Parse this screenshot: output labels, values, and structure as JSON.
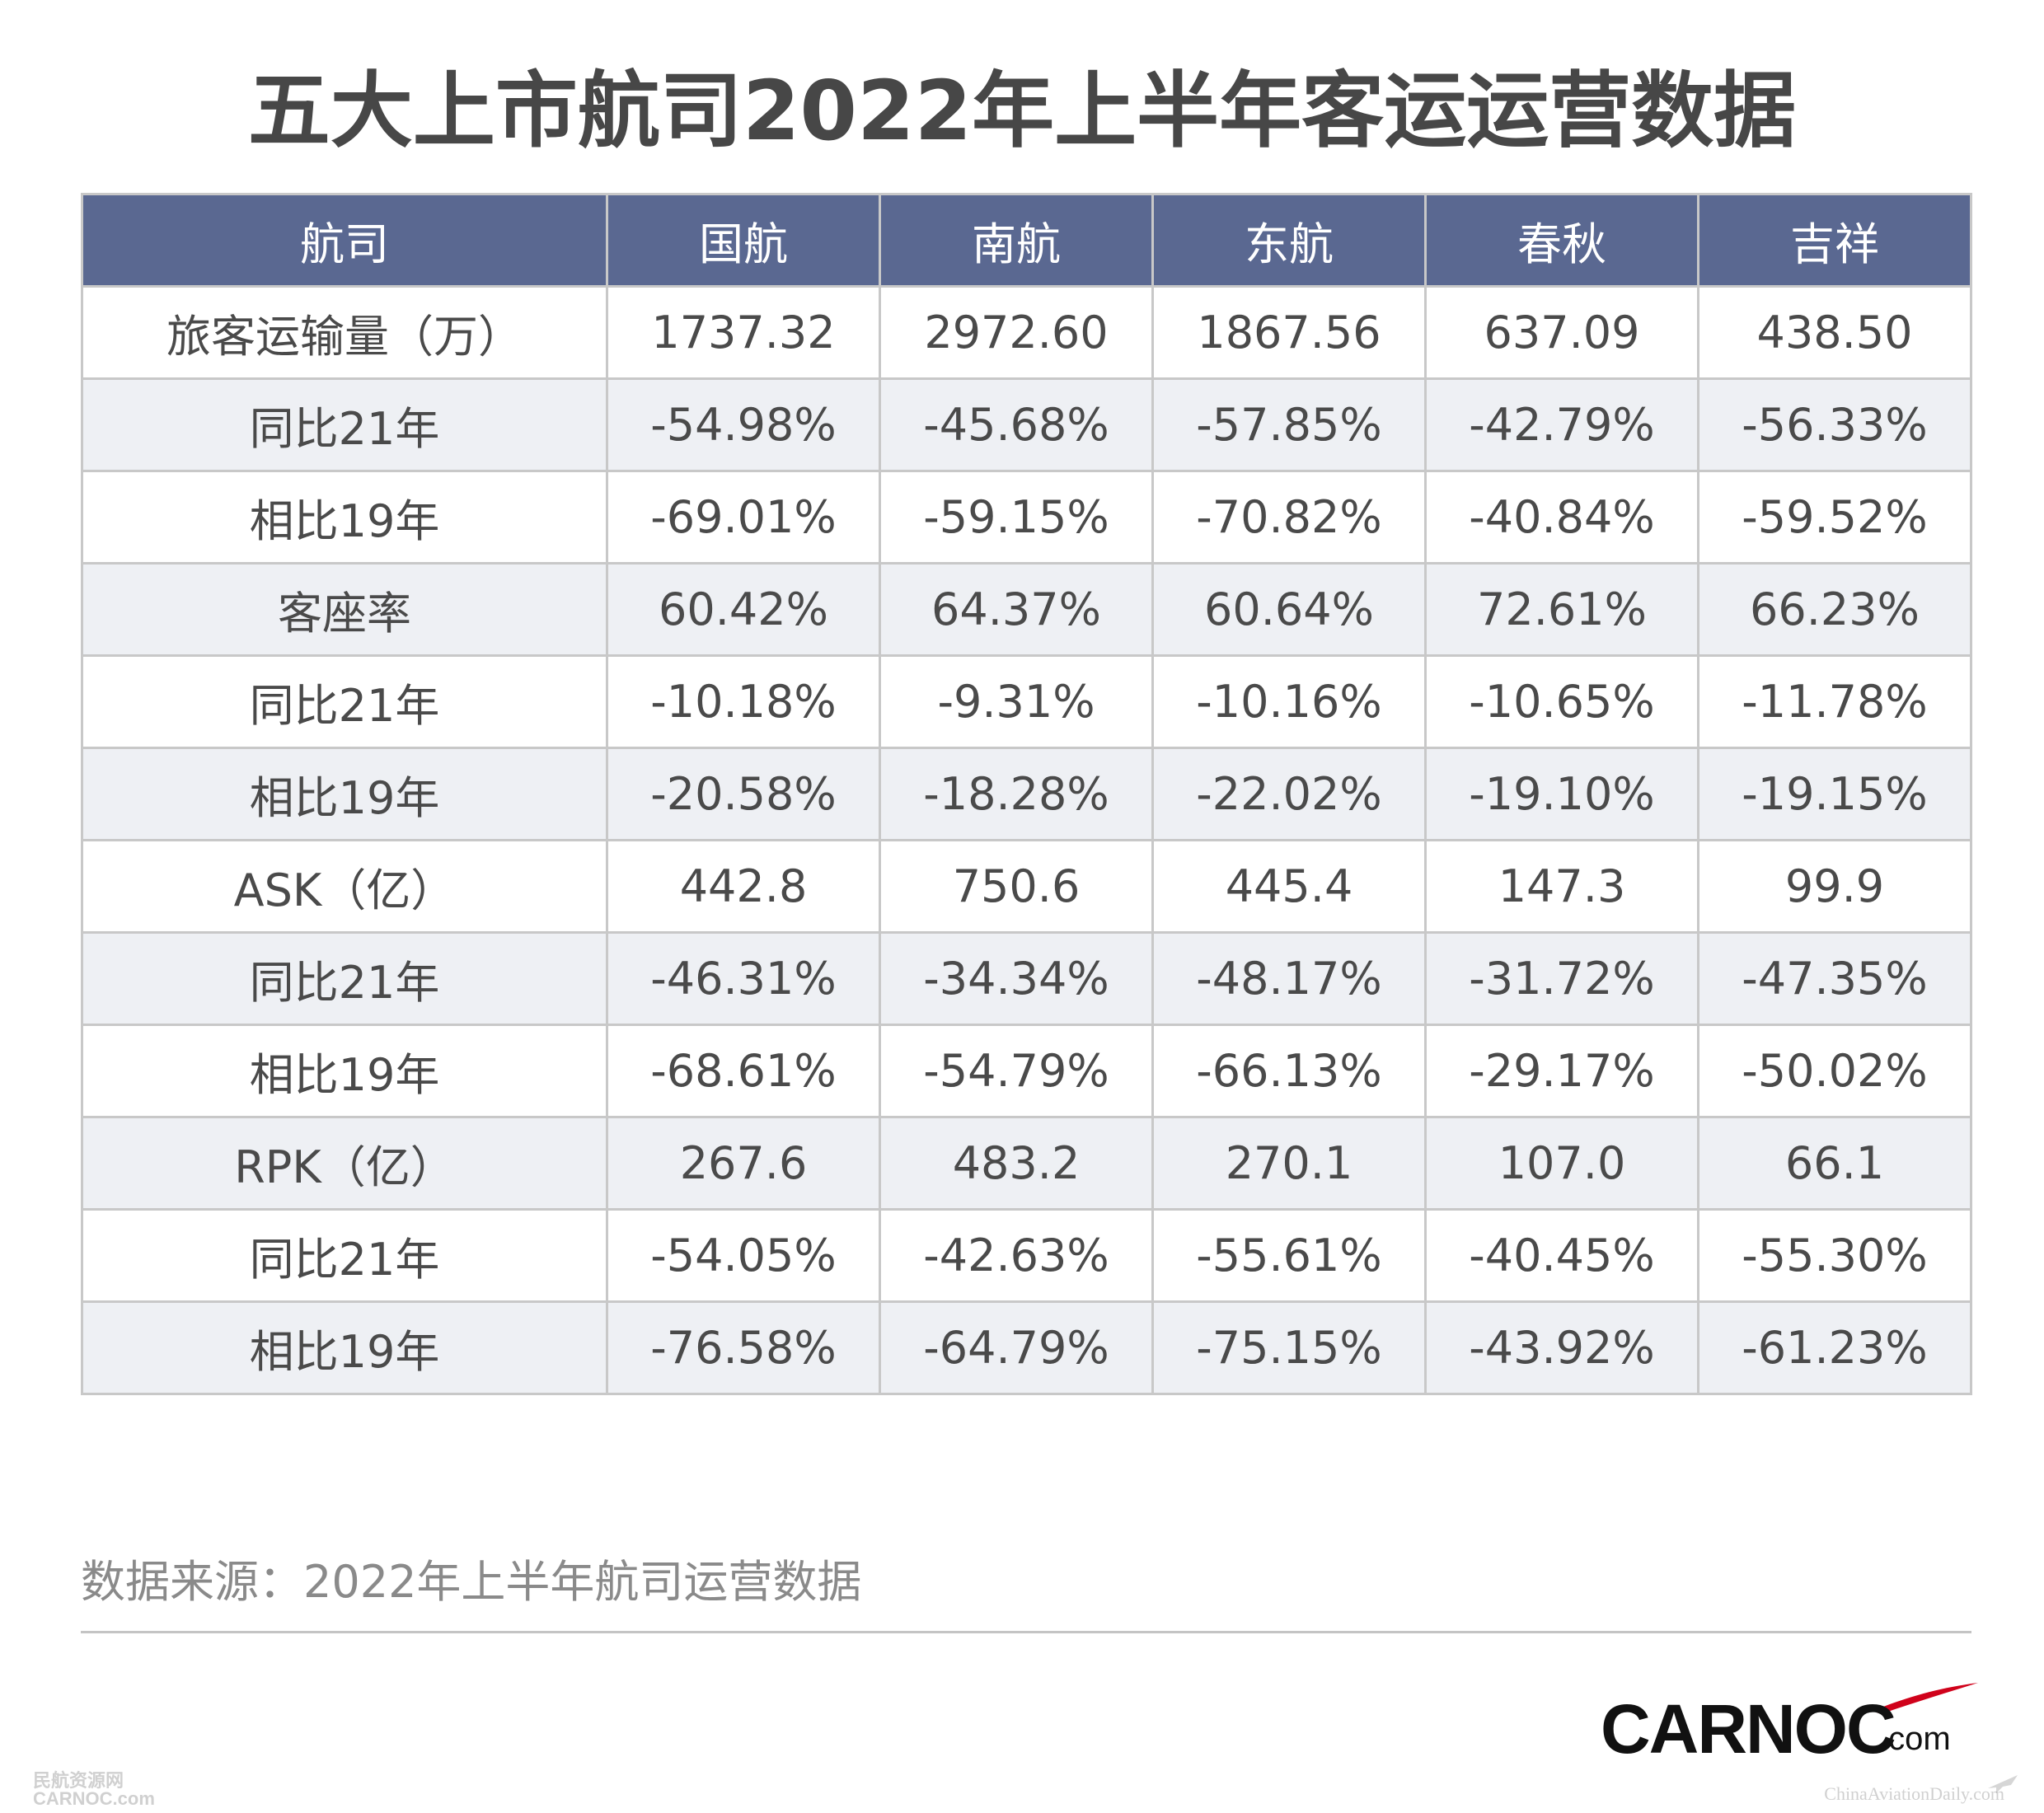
{
  "title": "五大上市航司2022年上半年客运运营数据",
  "table": {
    "headers": [
      "航司",
      "国航",
      "南航",
      "东航",
      "春秋",
      "吉祥"
    ],
    "rows": [
      {
        "label": "旅客运输量（万）",
        "values": [
          "1737.32",
          "2972.60",
          "1867.56",
          "637.09",
          "438.50"
        ]
      },
      {
        "label": "同比21年",
        "values": [
          "-54.98%",
          "-45.68%",
          "-57.85%",
          "-42.79%",
          "-56.33%"
        ]
      },
      {
        "label": "相比19年",
        "values": [
          "-69.01%",
          "-59.15%",
          "-70.82%",
          "-40.84%",
          "-59.52%"
        ]
      },
      {
        "label": "客座率",
        "values": [
          "60.42%",
          "64.37%",
          "60.64%",
          "72.61%",
          "66.23%"
        ]
      },
      {
        "label": "同比21年",
        "values": [
          "-10.18%",
          "-9.31%",
          "-10.16%",
          "-10.65%",
          "-11.78%"
        ]
      },
      {
        "label": "相比19年",
        "values": [
          "-20.58%",
          "-18.28%",
          "-22.02%",
          "-19.10%",
          "-19.15%"
        ]
      },
      {
        "label": "ASK（亿）",
        "values": [
          "442.8",
          "750.6",
          "445.4",
          "147.3",
          "99.9"
        ]
      },
      {
        "label": "同比21年",
        "values": [
          "-46.31%",
          "-34.34%",
          "-48.17%",
          "-31.72%",
          "-47.35%"
        ]
      },
      {
        "label": "相比19年",
        "values": [
          "-68.61%",
          "-54.79%",
          "-66.13%",
          "-29.17%",
          "-50.02%"
        ]
      },
      {
        "label": "RPK（亿）",
        "values": [
          "267.6",
          "483.2",
          "270.1",
          "107.0",
          "66.1"
        ]
      },
      {
        "label": "同比21年",
        "values": [
          "-54.05%",
          "-42.63%",
          "-55.61%",
          "-40.45%",
          "-55.30%"
        ]
      },
      {
        "label": "相比19年",
        "values": [
          "-76.58%",
          "-64.79%",
          "-75.15%",
          "-43.92%",
          "-61.23%"
        ]
      }
    ]
  },
  "source": "数据来源：2022年上半年航司运营数据",
  "logo": {
    "brand": "CARNOC",
    "suffix": ".com"
  },
  "watermarks": {
    "left_line1": "民航资源网",
    "left_line2": "CARNOC.com",
    "right": "ChinaAviationDaily.com"
  },
  "colors": {
    "header_bg": "#5a6891",
    "stripe": "#eef0f4",
    "logo_accent": "#d0021b"
  }
}
